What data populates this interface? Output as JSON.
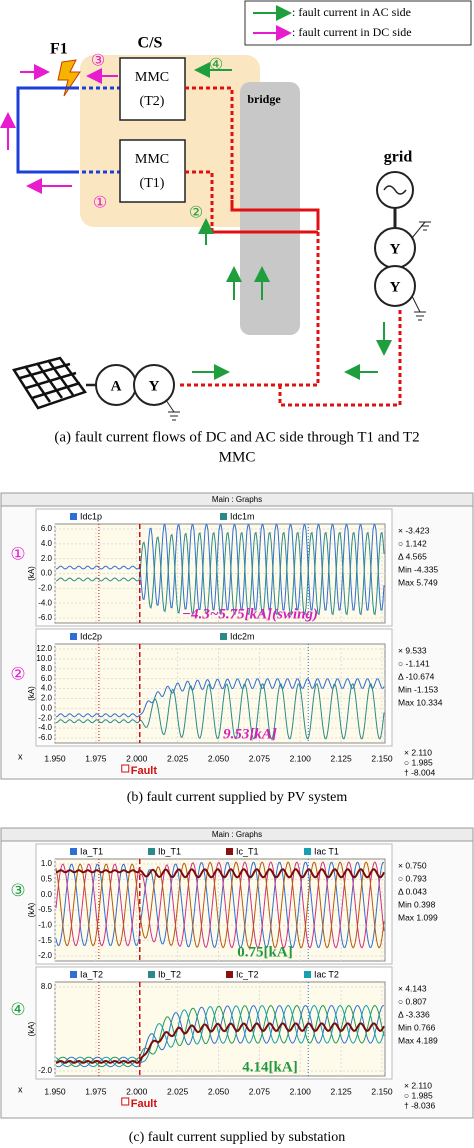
{
  "diagram": {
    "legend": [
      ": fault current in AC side",
      ": fault current in DC side"
    ],
    "f1": "F1",
    "cs": "C/S",
    "mmc_t2": [
      "MMC",
      "(T2)"
    ],
    "mmc_t1": [
      "MMC",
      "(T1)"
    ],
    "bridge": "bridge",
    "grid": "grid",
    "markers": [
      "①",
      "②",
      "③",
      "④"
    ],
    "pv_transformer": [
      "A",
      "Y"
    ],
    "grid_transformer": [
      "Y",
      "Y"
    ],
    "caption": [
      "(a) fault current flows of  DC and AC side through T1 and T2",
      "MMC"
    ]
  },
  "panel_b": {
    "window_title": "Main : Graphs",
    "graphs": [
      {
        "marker": "①",
        "legend": [
          "Idc1p",
          "Idc1m"
        ],
        "y_unit": "(kA)",
        "yticks": [
          "6.0",
          "4.0",
          "2.0",
          "0.0",
          "-2.0",
          "-4.0",
          "-6.0"
        ],
        "readouts": [
          "× -3.423",
          "○ 1.142",
          "Δ 4.565",
          "Min -4.335",
          "Max 5.749"
        ],
        "annotation": "−4.3~5.75[kA](swing)"
      },
      {
        "marker": "②",
        "legend": [
          "Idc2p",
          "Idc2m"
        ],
        "y_unit": "(kA)",
        "yticks": [
          "12.0",
          "10.0",
          "8.0",
          "6.0",
          "4.0",
          "2.0",
          "0.0",
          "-2.0",
          "-4.0",
          "-6.0"
        ],
        "readouts": [
          "× 9.533",
          "○ -1.141",
          "Δ -10.674",
          "Min -1.153",
          "Max 10.334"
        ],
        "annotation": "9.53[kA]"
      }
    ],
    "x_axis": {
      "label": "x",
      "ticks": [
        "1.950",
        "1.975",
        "2.000",
        "2.025",
        "2.050",
        "2.075",
        "2.100",
        "2.125",
        "2.150"
      ],
      "fault": "Fault",
      "readouts": [
        "× 2.110",
        "○ 1.985",
        "† -8.004"
      ]
    },
    "caption": "(b) fault current supplied by PV system"
  },
  "panel_c": {
    "window_title": "Main : Graphs",
    "graphs": [
      {
        "marker": "③",
        "legend": [
          "Ia_T1",
          "Ib_T1",
          "Ic_T1",
          "Iac T1"
        ],
        "y_unit": "(kA)",
        "yticks": [
          "1.0",
          "0.5",
          "0.0",
          "-0.5",
          "-1.0",
          "-1.5",
          "-2.0"
        ],
        "readouts": [
          "× 0.750",
          "○ 0.793",
          "Δ 0.043",
          "Min 0.398",
          "Max 1.099"
        ],
        "annotation": "0.75[kA]"
      },
      {
        "marker": "④",
        "legend": [
          "Ia_T2",
          "Ib_T2",
          "Ic_T2",
          "Iac T2"
        ],
        "y_unit": "(kA)",
        "yticks": [
          "8.0",
          "-2.0"
        ],
        "readouts": [
          "× 4.143",
          "○ 0.807",
          "Δ -3.336",
          "Min 0.766",
          "Max 4.189"
        ],
        "annotation": "4.14[kA]"
      }
    ],
    "x_axis": {
      "label": "x",
      "ticks": [
        "1.950",
        "1.975",
        "2.000",
        "2.025",
        "2.050",
        "2.075",
        "2.100",
        "2.125",
        "2.150"
      ],
      "fault": "Fault",
      "readouts": [
        "× 2.110",
        "○ 1.985",
        "† -8.036"
      ]
    },
    "caption": "(c) fault current supplied by substation"
  }
}
